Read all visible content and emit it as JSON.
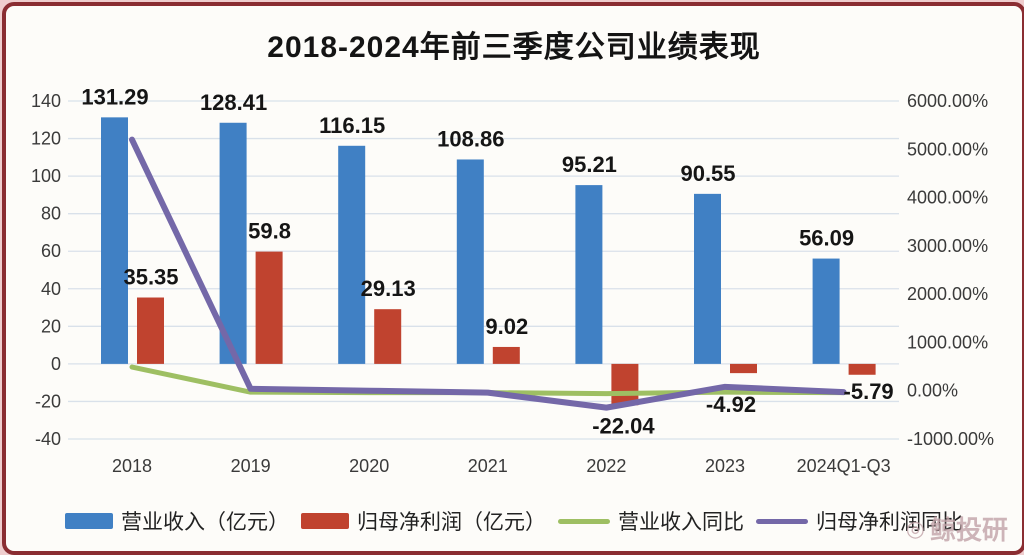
{
  "title": "2018-2024年前三季度公司业绩表现",
  "watermark": {
    "icon": "whale-logo",
    "text": "鲸投研"
  },
  "chart_data": {
    "type": "bar",
    "subtype": "bar+line combo, dual axis",
    "title": "2018-2024年前三季度公司业绩表现",
    "categories": [
      "2018",
      "2019",
      "2020",
      "2021",
      "2022",
      "2023",
      "2024Q1-Q3"
    ],
    "bar_series": [
      {
        "name": "营业收入（亿元）",
        "color": "#4080c4",
        "axis": "left",
        "values": [
          131.29,
          128.41,
          116.15,
          108.86,
          95.21,
          90.55,
          56.09
        ],
        "labels": [
          "131.29",
          "128.41",
          "116.15",
          "108.86",
          "95.21",
          "90.55",
          "56.09"
        ]
      },
      {
        "name": "归母净利润（亿元）",
        "color": "#c0432f",
        "axis": "left",
        "values": [
          35.35,
          59.8,
          29.13,
          9.02,
          -22.04,
          -4.92,
          -5.79
        ],
        "labels": [
          "35.35",
          "59.8",
          "29.13",
          "9.02",
          "-22.04",
          "-4.92",
          "-5.79"
        ]
      }
    ],
    "line_series": [
      {
        "name": "营业收入同比",
        "color": "#9ebf63",
        "axis": "right",
        "values_pct_estimated": [
          490,
          -30,
          -40,
          -40,
          -60,
          -30,
          -40
        ]
      },
      {
        "name": "归母净利润同比",
        "color": "#7468a8",
        "axis": "right",
        "values_pct_estimated": [
          5200,
          40,
          0,
          -40,
          -350,
          80,
          -30
        ]
      }
    ],
    "left_axis": {
      "ticks": [
        140,
        120,
        100,
        80,
        60,
        40,
        20,
        0,
        -20,
        -40
      ],
      "min": -40,
      "max": 140
    },
    "right_axis": {
      "tick_labels": [
        "6000.00%",
        "5000.00%",
        "4000.00%",
        "3000.00%",
        "2000.00%",
        "1000.00%",
        "0.00%",
        "-1000.00%"
      ],
      "min_pct": -1000,
      "max_pct": 6000
    },
    "grid": true,
    "legend_position": "bottom"
  }
}
